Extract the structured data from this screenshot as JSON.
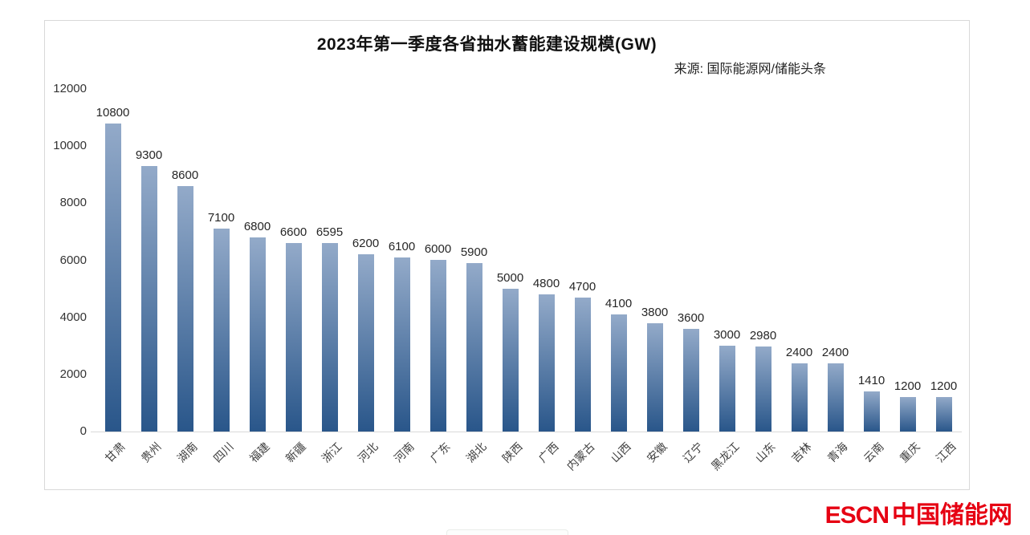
{
  "chart_data": {
    "type": "bar",
    "title": "2023年第一季度各省抽水蓄能建设规模(GW)",
    "source": "来源: 国际能源网/储能头条",
    "categories": [
      "甘肃",
      "贵州",
      "湖南",
      "四川",
      "福建",
      "新疆",
      "浙江",
      "河北",
      "河南",
      "广东",
      "湖北",
      "陕西",
      "广西",
      "内蒙古",
      "山西",
      "安徽",
      "辽宁",
      "黑龙江",
      "山东",
      "吉林",
      "青海",
      "云南",
      "重庆",
      "江西"
    ],
    "values": [
      10800,
      9300,
      8600,
      7100,
      6800,
      6600,
      6595,
      6200,
      6100,
      6000,
      5900,
      5000,
      4800,
      4700,
      4100,
      3800,
      3600,
      3000,
      2980,
      2400,
      2400,
      1410,
      1200,
      1200
    ],
    "xlabel": "",
    "ylabel": "",
    "ylim": [
      0,
      12000
    ],
    "yticks": [
      0,
      2000,
      4000,
      6000,
      8000,
      10000,
      12000
    ],
    "grid": false,
    "legend": "none",
    "data_labels": true,
    "bar_color_top": "#93aac9",
    "bar_color_bottom": "#29568a"
  },
  "logo": {
    "escn": "ESCN",
    "cn": "中国储能网",
    "color": "#e60012"
  }
}
